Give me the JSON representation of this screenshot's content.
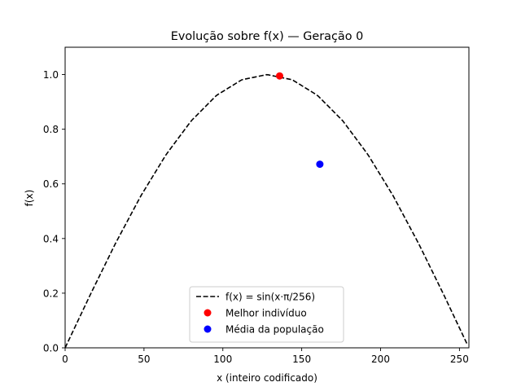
{
  "chart_data": {
    "type": "line",
    "title": "Evolução sobre f(x) — Geração 0",
    "xlabel": "x (inteiro codificado)",
    "ylabel": "f(x)",
    "xlim": [
      0,
      256
    ],
    "ylim": [
      0,
      1.1
    ],
    "xticks": [
      0,
      50,
      100,
      150,
      200,
      250
    ],
    "yticks": [
      0.0,
      0.2,
      0.4,
      0.6,
      0.8,
      1.0
    ],
    "xtick_labels": [
      "0",
      "50",
      "100",
      "150",
      "200",
      "250"
    ],
    "ytick_labels": [
      "0.0",
      "0.2",
      "0.4",
      "0.6",
      "0.8",
      "1.0"
    ],
    "grid": false,
    "legend_position": "bottom-center",
    "series": [
      {
        "name": "f(x) = sin(x·π/256)",
        "kind": "line",
        "style": "dashed",
        "color": "#000000",
        "x": [
          0,
          16,
          32,
          48,
          64,
          80,
          96,
          112,
          128,
          144,
          160,
          176,
          192,
          208,
          224,
          240,
          255
        ],
        "y": [
          0.0,
          0.195,
          0.383,
          0.556,
          0.707,
          0.831,
          0.924,
          0.981,
          1.0,
          0.981,
          0.924,
          0.831,
          0.707,
          0.556,
          0.383,
          0.195,
          0.012
        ]
      },
      {
        "name": "Melhor indivíduo",
        "kind": "point",
        "color": "#ff0000",
        "x": [
          136
        ],
        "y": [
          0.995
        ]
      },
      {
        "name": "Média da população",
        "kind": "point",
        "color": "#0000ff",
        "x": [
          161.5
        ],
        "y": [
          0.672
        ]
      }
    ]
  }
}
